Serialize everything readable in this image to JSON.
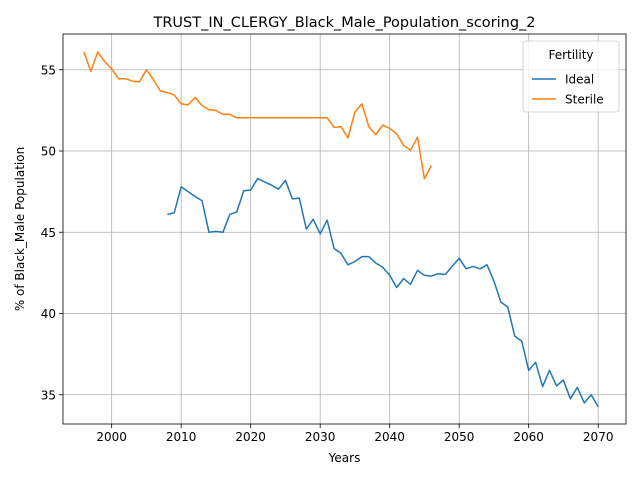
{
  "chart_data": {
    "type": "line",
    "title": "TRUST_IN_CLERGY_Black_Male_Population_scoring_2",
    "xlabel": "Years",
    "ylabel": "% of Black_Male Population",
    "xlim": [
      1993,
      2074
    ],
    "ylim": [
      33.2,
      57.2
    ],
    "xticks": [
      2000,
      2010,
      2020,
      2030,
      2040,
      2050,
      2060,
      2070
    ],
    "yticks": [
      35,
      40,
      45,
      50,
      55
    ],
    "grid": true,
    "legend": {
      "title": "Fertility",
      "placement": "top-right"
    },
    "series": [
      {
        "name": "Ideal",
        "color": "#1f77b4",
        "x": [
          2008,
          2009,
          2010,
          2011,
          2012,
          2013,
          2014,
          2015,
          2016,
          2017,
          2018,
          2019,
          2020,
          2021,
          2022,
          2023,
          2024,
          2025,
          2026,
          2027,
          2028,
          2029,
          2030,
          2031,
          2032,
          2033,
          2034,
          2035,
          2036,
          2037,
          2038,
          2039,
          2040,
          2041,
          2042,
          2043,
          2044,
          2045,
          2046,
          2047,
          2048,
          2049,
          2050,
          2051,
          2052,
          2053,
          2054,
          2055,
          2056,
          2057,
          2058,
          2059,
          2060,
          2061,
          2062,
          2063,
          2064,
          2065,
          2066,
          2067,
          2068,
          2069,
          2070
        ],
        "values": [
          46.1,
          46.2,
          47.8,
          47.5,
          47.2,
          46.95,
          45.0,
          45.05,
          45.0,
          46.1,
          46.25,
          47.55,
          47.6,
          48.3,
          48.1,
          47.9,
          47.65,
          48.2,
          47.05,
          47.1,
          45.2,
          45.8,
          44.9,
          45.75,
          44.0,
          43.7,
          43.0,
          43.2,
          43.5,
          43.5,
          43.1,
          42.85,
          42.35,
          41.6,
          42.15,
          41.8,
          42.65,
          42.35,
          42.3,
          42.45,
          42.4,
          42.9,
          43.4,
          42.75,
          42.9,
          42.75,
          43.0,
          42.0,
          40.7,
          40.4,
          38.6,
          38.3,
          36.5,
          37.0,
          35.5,
          36.5,
          35.55,
          35.9,
          34.75,
          35.45,
          34.5,
          35.0,
          34.25
        ]
      },
      {
        "name": "Sterile",
        "color": "#ff7f0e",
        "x": [
          1996,
          1997,
          1998,
          1999,
          2000,
          2001,
          2002,
          2003,
          2004,
          2005,
          2006,
          2007,
          2008,
          2009,
          2010,
          2011,
          2012,
          2013,
          2014,
          2015,
          2016,
          2017,
          2018,
          2019,
          2020,
          2021,
          2022,
          2023,
          2024,
          2025,
          2026,
          2027,
          2028,
          2029,
          2030,
          2031,
          2032,
          2033,
          2034,
          2035,
          2036,
          2037,
          2038,
          2039,
          2040,
          2041,
          2042,
          2043,
          2044,
          2045,
          2046
        ],
        "values": [
          56.1,
          54.9,
          56.1,
          55.5,
          55.05,
          54.45,
          54.45,
          54.3,
          54.25,
          55.0,
          54.4,
          53.7,
          53.6,
          53.45,
          52.9,
          52.85,
          53.3,
          52.8,
          52.55,
          52.5,
          52.25,
          52.25,
          52.05,
          52.05,
          52.05,
          52.05,
          52.05,
          52.05,
          52.05,
          52.05,
          52.05,
          52.05,
          52.05,
          52.05,
          52.05,
          52.05,
          51.45,
          51.5,
          50.8,
          52.4,
          52.9,
          51.5,
          51.0,
          51.6,
          51.4,
          51.05,
          50.35,
          50.05,
          50.85,
          48.3,
          49.1
        ]
      }
    ]
  }
}
